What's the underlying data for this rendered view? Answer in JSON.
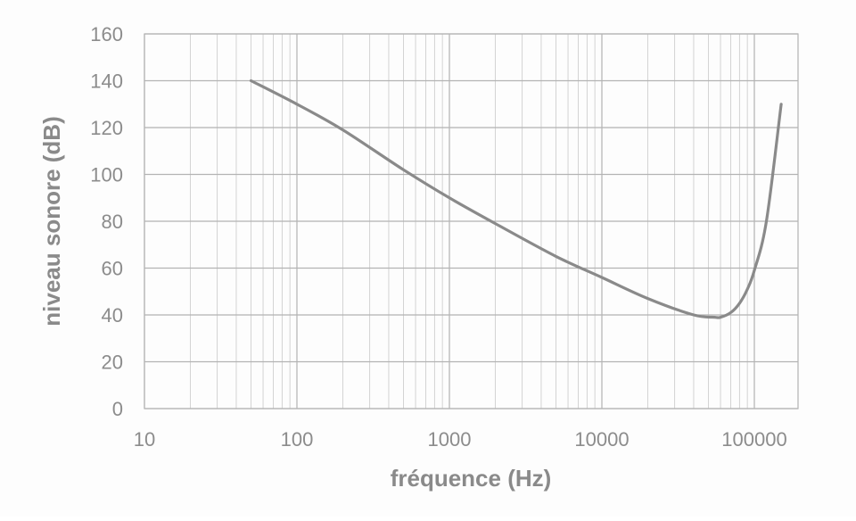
{
  "chart_data": {
    "type": "line",
    "title": "",
    "xlabel": "fréquence (Hz)",
    "ylabel": "niveau sonore (dB)",
    "x_scale": "log",
    "xlim": [
      10,
      150000
    ],
    "ylim": [
      0,
      160
    ],
    "x_ticks": [
      "10",
      "100",
      "1000",
      "10000",
      "100000"
    ],
    "y_ticks": [
      "0",
      "20",
      "40",
      "60",
      "80",
      "100",
      "120",
      "140",
      "160"
    ],
    "grid": true,
    "legend": "none",
    "series": [
      {
        "x": [
          50,
          100,
          200,
          500,
          1000,
          2000,
          5000,
          10000,
          20000,
          40000,
          55000,
          60000,
          70000,
          80000,
          90000,
          100000,
          120000,
          150000
        ],
        "y": [
          140,
          130,
          119,
          102,
          90,
          79,
          65,
          56,
          47,
          40,
          39,
          39,
          41,
          45,
          51,
          59,
          80,
          130
        ]
      }
    ],
    "colors": {
      "line": "#8a8a8a",
      "major_grid": "#b3b3b3",
      "minor_grid": "#d3d3d3",
      "text": "#8c8c8c"
    }
  }
}
